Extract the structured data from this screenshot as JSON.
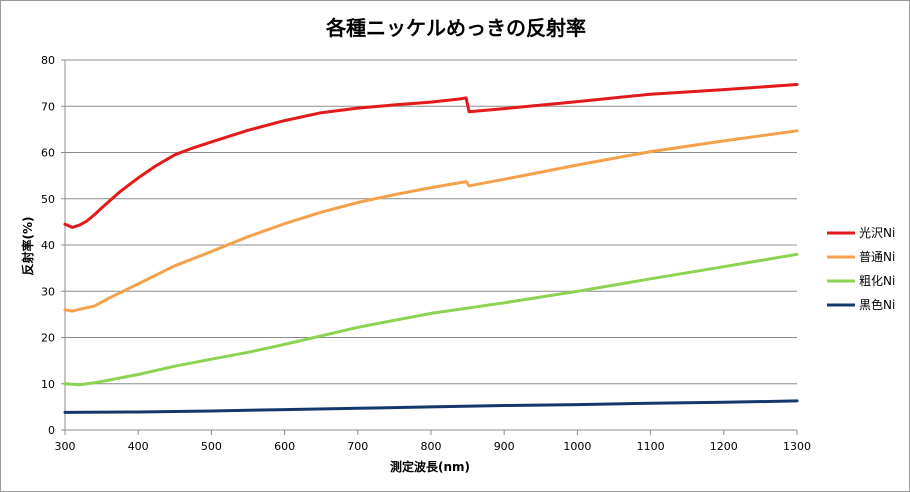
{
  "chart_data": {
    "type": "line",
    "title": "各種ニッケルめっきの反射率",
    "xlabel": "測定波長(nm)",
    "ylabel": "反射率(%)",
    "xlim": [
      300,
      1300
    ],
    "ylim": [
      0,
      80
    ],
    "xticks": [
      "300",
      "400",
      "500",
      "600",
      "700",
      "800",
      "900",
      "1000",
      "1100",
      "1200",
      "1300"
    ],
    "yticks": [
      "0",
      "10",
      "20",
      "30",
      "40",
      "50",
      "60",
      "70",
      "80"
    ],
    "grid": "horizontal",
    "legend_position": "right",
    "series": [
      {
        "name": "光沢Ni",
        "color": "#e31a1c",
        "x": [
          300,
          310,
          320,
          330,
          340,
          350,
          375,
          400,
          425,
          450,
          475,
          500,
          550,
          600,
          650,
          700,
          750,
          800,
          840,
          848,
          852,
          900,
          1000,
          1100,
          1200,
          1300
        ],
        "y": [
          44.5,
          43.8,
          44.3,
          45.2,
          46.5,
          48.0,
          51.5,
          54.5,
          57.2,
          59.5,
          61.0,
          62.3,
          64.8,
          66.9,
          68.6,
          69.6,
          70.3,
          70.9,
          71.6,
          71.8,
          68.8,
          69.5,
          71.0,
          72.6,
          73.6,
          74.7
        ]
      },
      {
        "name": "普通Ni",
        "color": "#f5a04a",
        "x": [
          300,
          310,
          320,
          340,
          360,
          400,
          450,
          500,
          550,
          600,
          650,
          700,
          750,
          800,
          840,
          848,
          852,
          900,
          1000,
          1100,
          1200,
          1300
        ],
        "y": [
          26.0,
          25.7,
          26.1,
          26.8,
          28.5,
          31.6,
          35.5,
          38.6,
          41.8,
          44.6,
          47.1,
          49.2,
          50.9,
          52.4,
          53.5,
          53.7,
          52.8,
          54.2,
          57.3,
          60.2,
          62.5,
          64.7
        ]
      },
      {
        "name": "粗化Ni",
        "color": "#8dd251",
        "x": [
          300,
          320,
          340,
          360,
          400,
          450,
          500,
          550,
          600,
          700,
          800,
          900,
          1000,
          1100,
          1200,
          1300
        ],
        "y": [
          10.0,
          9.8,
          10.2,
          10.8,
          12.0,
          13.8,
          15.3,
          16.8,
          18.5,
          22.2,
          25.2,
          27.5,
          30.0,
          32.7,
          35.3,
          38.0
        ]
      },
      {
        "name": "黒色Ni",
        "color": "#14386b",
        "x": [
          300,
          400,
          500,
          600,
          700,
          800,
          900,
          1000,
          1100,
          1200,
          1300
        ],
        "y": [
          3.8,
          3.9,
          4.1,
          4.4,
          4.7,
          5.0,
          5.3,
          5.5,
          5.8,
          6.0,
          6.3
        ]
      }
    ]
  }
}
